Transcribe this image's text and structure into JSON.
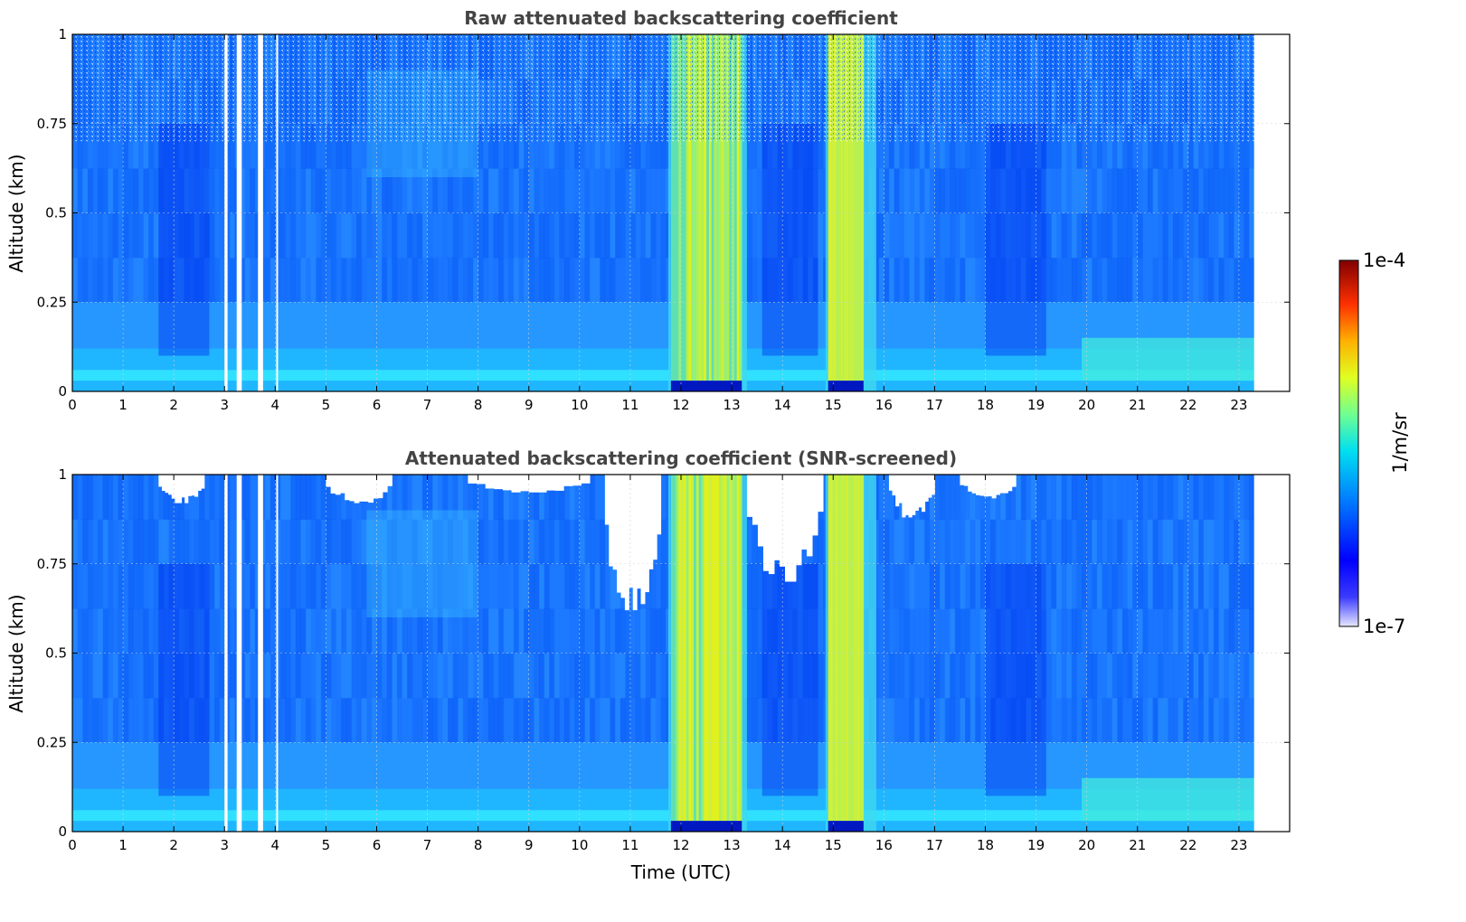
{
  "chart_data": [
    {
      "type": "heatmap",
      "title": "Raw attenuated backscattering coefficient",
      "xlabel": "",
      "ylabel": "Altitude (km)",
      "xlim": [
        0,
        24
      ],
      "ylim": [
        0,
        1
      ],
      "xticks": [
        "0",
        "1",
        "2",
        "3",
        "4",
        "5",
        "6",
        "7",
        "8",
        "9",
        "10",
        "11",
        "12",
        "13",
        "14",
        "15",
        "16",
        "17",
        "18",
        "19",
        "20",
        "21",
        "22",
        "23"
      ],
      "yticks": [
        "0",
        "0.25",
        "0.5",
        "0.75",
        "1"
      ],
      "grid": true,
      "data_end_time": 23.3,
      "missing_time_intervals": [
        [
          3.0,
          3.06
        ],
        [
          3.24,
          3.34
        ],
        [
          3.66,
          3.76
        ],
        [
          4.02,
          4.05
        ]
      ],
      "aerosol_layer_top_km": 0.2,
      "high_signal_time_intervals": [
        [
          11.8,
          13.2
        ],
        [
          14.9,
          15.6
        ],
        [
          19.9,
          23.3
        ]
      ]
    },
    {
      "type": "heatmap",
      "title": "Attenuated backscattering coefficient (SNR-screened)",
      "xlabel": "Time (UTC)",
      "ylabel": "Altitude (km)",
      "xlim": [
        0,
        24
      ],
      "ylim": [
        0,
        1
      ],
      "xticks": [
        "0",
        "1",
        "2",
        "3",
        "4",
        "5",
        "6",
        "7",
        "8",
        "9",
        "10",
        "11",
        "12",
        "13",
        "14",
        "15",
        "16",
        "17",
        "18",
        "19",
        "20",
        "21",
        "22",
        "23"
      ],
      "yticks": [
        "0",
        "0.25",
        "0.5",
        "0.75",
        "1"
      ],
      "grid": true,
      "data_end_time": 23.3,
      "missing_time_intervals": [
        [
          3.0,
          3.06
        ],
        [
          3.24,
          3.34
        ],
        [
          3.66,
          3.76
        ],
        [
          4.02,
          4.05
        ]
      ],
      "screened_regions": [
        {
          "t": [
            10.5,
            11.6
          ],
          "alt": [
            0.62,
            1.0
          ]
        },
        {
          "t": [
            13.3,
            14.8
          ],
          "alt": [
            0.7,
            1.0
          ]
        },
        {
          "t": [
            16.1,
            17.0
          ],
          "alt": [
            0.88,
            1.0
          ]
        },
        {
          "t": [
            1.7,
            2.6
          ],
          "alt": [
            0.92,
            1.0
          ]
        },
        {
          "t": [
            5.0,
            6.3
          ],
          "alt": [
            0.92,
            1.0
          ]
        },
        {
          "t": [
            7.8,
            10.2
          ],
          "alt": [
            0.95,
            1.0
          ]
        },
        {
          "t": [
            17.5,
            18.6
          ],
          "alt": [
            0.93,
            1.0
          ]
        }
      ]
    }
  ],
  "colorbar": {
    "label": "1/m/sr",
    "min_label": "1e-7",
    "max_label": "1e-4",
    "scale": "log",
    "colormap": "jet"
  }
}
